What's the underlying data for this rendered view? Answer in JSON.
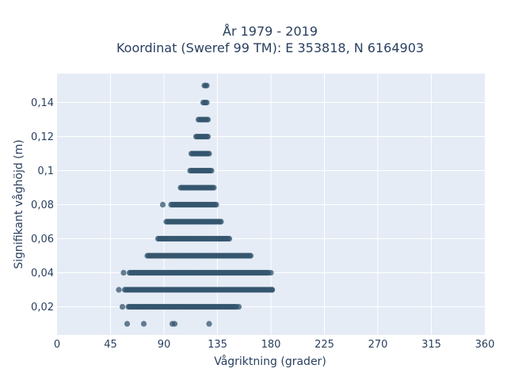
{
  "chart_data": {
    "type": "scatter",
    "title_line1": "År 1979 - 2019",
    "title_line2": "Koordinat (Sweref 99 TM): E 353818, N 6164903",
    "xlabel": "Vågriktning (grader)",
    "ylabel": "Signifikant våghöjd (m)",
    "xlim": [
      0,
      360
    ],
    "ylim": [
      0.0035,
      0.157
    ],
    "x_ticks": [
      0,
      45,
      90,
      135,
      180,
      225,
      270,
      315,
      360
    ],
    "x_tick_labels": [
      "0",
      "45",
      "90",
      "135",
      "180",
      "225",
      "270",
      "315",
      "360"
    ],
    "y_ticks": [
      0.02,
      0.04,
      0.06,
      0.08,
      0.1,
      0.12,
      0.14
    ],
    "y_tick_labels": [
      "0,02",
      "0,04",
      "0,06",
      "0,08",
      "0,1",
      "0,12",
      "0,14"
    ],
    "grid": true,
    "colors": {
      "marker": "#34566e",
      "plot_bg": "#e5ecf6",
      "text": "#2a3f5f"
    },
    "bands": [
      {
        "y": 0.15,
        "x_min": 124,
        "x_max": 126
      },
      {
        "y": 0.14,
        "x_min": 123,
        "x_max": 126
      },
      {
        "y": 0.13,
        "x_min": 119,
        "x_max": 127
      },
      {
        "y": 0.12,
        "x_min": 117,
        "x_max": 127
      },
      {
        "y": 0.11,
        "x_min": 113,
        "x_max": 128
      },
      {
        "y": 0.1,
        "x_min": 112,
        "x_max": 130
      },
      {
        "y": 0.09,
        "x_min": 104,
        "x_max": 132
      },
      {
        "y": 0.08,
        "x_min": 96,
        "x_max": 134
      },
      {
        "y": 0.07,
        "x_min": 92,
        "x_max": 138
      },
      {
        "y": 0.06,
        "x_min": 85,
        "x_max": 145
      },
      {
        "y": 0.05,
        "x_min": 76,
        "x_max": 163
      },
      {
        "y": 0.04,
        "x_min": 61,
        "x_max": 178
      },
      {
        "y": 0.03,
        "x_min": 57,
        "x_max": 181
      },
      {
        "y": 0.02,
        "x_min": 60,
        "x_max": 150
      }
    ],
    "points": [
      {
        "x": 56,
        "y": 0.04
      },
      {
        "x": 52,
        "y": 0.03
      },
      {
        "x": 55,
        "y": 0.02
      },
      {
        "x": 89,
        "y": 0.08
      },
      {
        "x": 151,
        "y": 0.02
      },
      {
        "x": 153,
        "y": 0.02
      },
      {
        "x": 181,
        "y": 0.03
      },
      {
        "x": 180,
        "y": 0.04
      },
      {
        "x": 59,
        "y": 0.01
      },
      {
        "x": 73,
        "y": 0.01
      },
      {
        "x": 97,
        "y": 0.01
      },
      {
        "x": 99,
        "y": 0.01
      },
      {
        "x": 128,
        "y": 0.01
      }
    ]
  }
}
